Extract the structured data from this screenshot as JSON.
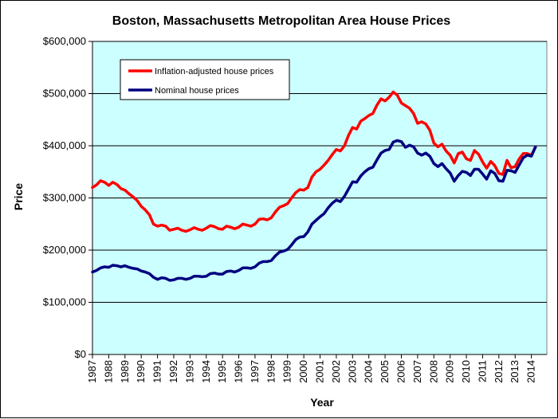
{
  "chart_data": {
    "type": "line",
    "title": "Boston, Massachusetts Metropolitan Area House Prices",
    "xlabel": "Year",
    "ylabel": "Price",
    "xlim": [
      1987,
      2014.95
    ],
    "ylim": [
      0,
      600000
    ],
    "grid": true,
    "legend_position": "top-left",
    "plot_background": "#ccffff",
    "y_ticks": [
      "$0",
      "$100,000",
      "$200,000",
      "$300,000",
      "$400,000",
      "$500,000",
      "$600,000"
    ],
    "y_tick_values": [
      0,
      100000,
      200000,
      300000,
      400000,
      500000,
      600000
    ],
    "x_ticks": [
      "1987",
      "1988",
      "1989",
      "1990",
      "1991",
      "1992",
      "1993",
      "1994",
      "1995",
      "1996",
      "1997",
      "1998",
      "1999",
      "2000",
      "2001",
      "2002",
      "2003",
      "2004",
      "2005",
      "2006",
      "2007",
      "2008",
      "2009",
      "2010",
      "2011",
      "2012",
      "2013",
      "2014"
    ],
    "series": [
      {
        "name": "Inflation-adjusted house prices",
        "color": "#ff0000",
        "x": [
          1987.0,
          1987.25,
          1987.5,
          1987.75,
          1988.0,
          1988.25,
          1988.5,
          1988.75,
          1989.0,
          1989.25,
          1989.5,
          1989.75,
          1990.0,
          1990.25,
          1990.5,
          1990.75,
          1991.0,
          1991.25,
          1991.5,
          1991.75,
          1992.0,
          1992.25,
          1992.5,
          1992.75,
          1993.0,
          1993.25,
          1993.5,
          1993.75,
          1994.0,
          1994.25,
          1994.5,
          1994.75,
          1995.0,
          1995.25,
          1995.5,
          1995.75,
          1996.0,
          1996.25,
          1996.5,
          1996.75,
          1997.0,
          1997.25,
          1997.5,
          1997.75,
          1998.0,
          1998.25,
          1998.5,
          1998.75,
          1999.0,
          1999.25,
          1999.5,
          1999.75,
          2000.0,
          2000.25,
          2000.5,
          2000.75,
          2001.0,
          2001.25,
          2001.5,
          2001.75,
          2002.0,
          2002.25,
          2002.5,
          2002.75,
          2003.0,
          2003.25,
          2003.5,
          2003.75,
          2004.0,
          2004.25,
          2004.5,
          2004.75,
          2005.0,
          2005.25,
          2005.5,
          2005.75,
          2006.0,
          2006.25,
          2006.5,
          2006.75,
          2007.0,
          2007.25,
          2007.5,
          2007.75,
          2008.0,
          2008.25,
          2008.5,
          2008.75,
          2009.0,
          2009.25,
          2009.5,
          2009.75,
          2010.0,
          2010.25,
          2010.5,
          2010.75,
          2011.0,
          2011.25,
          2011.5,
          2011.75,
          2012.0,
          2012.25,
          2012.5,
          2012.75,
          2013.0,
          2013.25,
          2013.5,
          2013.75,
          2014.0,
          2014.25
        ],
        "values": [
          320000,
          325000,
          333000,
          330000,
          324000,
          330000,
          326000,
          318000,
          315000,
          308000,
          302000,
          295000,
          284000,
          277000,
          268000,
          250000,
          246000,
          248000,
          246000,
          238000,
          240000,
          242000,
          238000,
          236000,
          239000,
          243000,
          240000,
          238000,
          242000,
          247000,
          245000,
          241000,
          240000,
          246000,
          244000,
          241000,
          244000,
          250000,
          248000,
          246000,
          250000,
          259000,
          260000,
          258000,
          262000,
          273000,
          282000,
          285000,
          289000,
          300000,
          310000,
          316000,
          315000,
          320000,
          340000,
          350000,
          355000,
          363000,
          372000,
          383000,
          393000,
          390000,
          400000,
          420000,
          435000,
          432000,
          447000,
          452000,
          458000,
          462000,
          478000,
          490000,
          486000,
          493000,
          503000,
          497000,
          482000,
          477000,
          472000,
          462000,
          443000,
          446000,
          442000,
          430000,
          405000,
          398000,
          403000,
          390000,
          382000,
          367000,
          385000,
          388000,
          375000,
          372000,
          391000,
          384000,
          369000,
          357000,
          370000,
          362000,
          347000,
          345000,
          372000,
          358000,
          360000,
          375000,
          385000,
          385000,
          382000,
          397000
        ]
      },
      {
        "name": "Nominal house prices",
        "color": "#000080",
        "x": [
          1987.0,
          1987.25,
          1987.5,
          1987.75,
          1988.0,
          1988.25,
          1988.5,
          1988.75,
          1989.0,
          1989.25,
          1989.5,
          1989.75,
          1990.0,
          1990.25,
          1990.5,
          1990.75,
          1991.0,
          1991.25,
          1991.5,
          1991.75,
          1992.0,
          1992.25,
          1992.5,
          1992.75,
          1993.0,
          1993.25,
          1993.5,
          1993.75,
          1994.0,
          1994.25,
          1994.5,
          1994.75,
          1995.0,
          1995.25,
          1995.5,
          1995.75,
          1996.0,
          1996.25,
          1996.5,
          1996.75,
          1997.0,
          1997.25,
          1997.5,
          1997.75,
          1998.0,
          1998.25,
          1998.5,
          1998.75,
          1999.0,
          1999.25,
          1999.5,
          1999.75,
          2000.0,
          2000.25,
          2000.5,
          2000.75,
          2001.0,
          2001.25,
          2001.5,
          2001.75,
          2002.0,
          2002.25,
          2002.5,
          2002.75,
          2003.0,
          2003.25,
          2003.5,
          2003.75,
          2004.0,
          2004.25,
          2004.5,
          2004.75,
          2005.0,
          2005.25,
          2005.5,
          2005.75,
          2006.0,
          2006.25,
          2006.5,
          2006.75,
          2007.0,
          2007.25,
          2007.5,
          2007.75,
          2008.0,
          2008.25,
          2008.5,
          2008.75,
          2009.0,
          2009.25,
          2009.5,
          2009.75,
          2010.0,
          2010.25,
          2010.5,
          2010.75,
          2011.0,
          2011.25,
          2011.5,
          2011.75,
          2012.0,
          2012.25,
          2012.5,
          2012.75,
          2013.0,
          2013.25,
          2013.5,
          2013.75,
          2014.0,
          2014.25
        ],
        "values": [
          158000,
          161000,
          166000,
          168000,
          167000,
          171000,
          170000,
          168000,
          170000,
          167000,
          165000,
          164000,
          160000,
          158000,
          155000,
          148000,
          144000,
          147000,
          146000,
          142000,
          143000,
          146000,
          146000,
          144000,
          146000,
          150000,
          150000,
          149000,
          150000,
          155000,
          156000,
          154000,
          154000,
          159000,
          160000,
          158000,
          161000,
          166000,
          166000,
          165000,
          168000,
          175000,
          178000,
          178000,
          180000,
          189000,
          196000,
          198000,
          201000,
          210000,
          220000,
          225000,
          226000,
          235000,
          250000,
          257000,
          264000,
          270000,
          281000,
          290000,
          296000,
          293000,
          303000,
          317000,
          331000,
          330000,
          342000,
          350000,
          356000,
          359000,
          373000,
          386000,
          391000,
          393000,
          407000,
          410000,
          408000,
          397000,
          401000,
          398000,
          386000,
          382000,
          386000,
          380000,
          366000,
          360000,
          366000,
          356000,
          348000,
          332000,
          343000,
          351000,
          349000,
          343000,
          355000,
          355000,
          346000,
          336000,
          352000,
          347000,
          333000,
          332000,
          353000,
          352000,
          349000,
          363000,
          377000,
          382000,
          380000,
          398000
        ]
      }
    ]
  }
}
